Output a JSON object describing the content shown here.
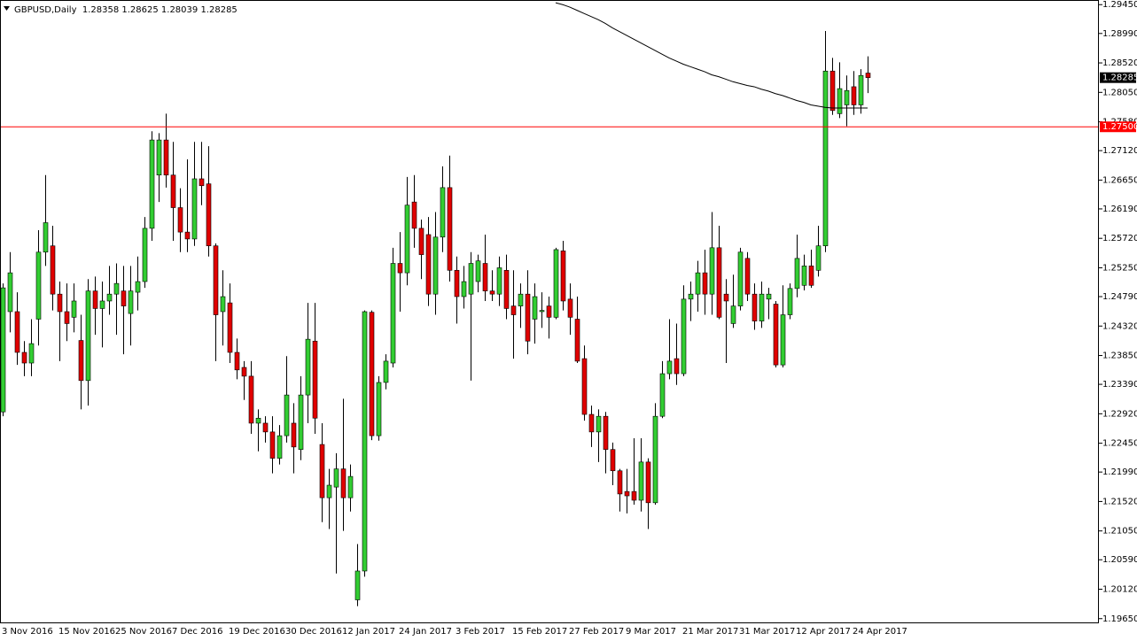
{
  "chart_data": {
    "type": "candlestick",
    "title": "GBPUSD,Daily  1.28358 1.28625 1.28039 1.28285",
    "categories": [
      "3 Nov 2016",
      null,
      null,
      null,
      null,
      null,
      null,
      null,
      "15 Nov 2016",
      null,
      null,
      null,
      null,
      null,
      null,
      null,
      "25 Nov 2016",
      null,
      null,
      null,
      null,
      null,
      null,
      null,
      "7 Dec 2016",
      null,
      null,
      null,
      null,
      null,
      null,
      null,
      "19 Dec 2016",
      null,
      null,
      null,
      null,
      null,
      null,
      null,
      "30 Dec 2016",
      null,
      null,
      null,
      null,
      null,
      null,
      null,
      "12 Jan 2017",
      null,
      null,
      null,
      null,
      null,
      null,
      null,
      "24 Jan 2017",
      null,
      null,
      null,
      null,
      null,
      null,
      null,
      "3 Feb 2017",
      null,
      null,
      null,
      null,
      null,
      null,
      null,
      "15 Feb 2017",
      null,
      null,
      null,
      null,
      null,
      null,
      null,
      "27 Feb 2017",
      null,
      null,
      null,
      null,
      null,
      null,
      null,
      "9 Mar 2017",
      null,
      null,
      null,
      null,
      null,
      null,
      null,
      "21 Mar 2017",
      null,
      null,
      null,
      null,
      null,
      null,
      null,
      "31 Mar 2017",
      null,
      null,
      null,
      null,
      null,
      null,
      null,
      "12 Apr 2017",
      null,
      null,
      null,
      null,
      null,
      null,
      null,
      "24 Apr 2017",
      null,
      null
    ],
    "open": [
      1.2295,
      1.2455,
      1.2455,
      1.239,
      1.2373,
      1.2443,
      1.255,
      1.256,
      1.2483,
      1.2455,
      1.2446,
      1.2409,
      1.2345,
      1.2488,
      1.246,
      1.2472,
      1.2483,
      1.2488,
      1.2452,
      1.2486,
      1.2503,
      1.2588,
      1.2673,
      1.2729,
      1.2673,
      1.2621,
      1.2582,
      1.2571,
      1.2667,
      1.2659,
      1.256,
      1.2455,
      1.2469,
      1.239,
      1.2366,
      1.2352,
      1.2277,
      1.2277,
      1.2263,
      1.2221,
      1.2257,
      1.2277,
      1.2235,
      1.2322,
      1.2408,
      1.2243,
      1.2158,
      1.2175,
      1.2204,
      1.2158,
      1.1995,
      1.2041,
      1.2454,
      1.2257,
      1.2342,
      1.2373,
      1.2532,
      1.2517,
      1.263,
      1.2588,
      1.2578,
      1.2483,
      1.2574,
      1.2653,
      1.2521,
      1.2479,
      1.2483,
      1.2503,
      1.2532,
      1.2488,
      1.2483,
      1.2521,
      1.2464,
      1.2464,
      1.2483,
      1.2443,
      1.2455,
      1.2464,
      1.2446,
      1.2552,
      1.2475,
      1.2443,
      1.238,
      1.2291,
      1.2263,
      1.2288,
      1.2235,
      1.2201,
      1.2168,
      1.2168,
      1.2154,
      1.2215,
      1.215,
      1.2288,
      1.2356,
      1.238,
      1.2356,
      1.2475,
      1.2483,
      1.2517,
      1.2483,
      1.2557,
      1.2483,
      1.2436,
      1.2464,
      1.254,
      1.2483,
      1.244,
      1.2475,
      1.2467,
      1.237,
      1.245,
      1.2492,
      1.2497,
      1.2528,
      1.2521,
      1.256,
      1.2839,
      1.2771,
      1.2785,
      1.2814,
      1.2785,
      1.28358
    ],
    "high": [
      1.25,
      1.255,
      1.2486,
      1.2408,
      1.2443,
      1.2585,
      1.2673,
      1.2592,
      1.2503,
      1.25,
      1.25,
      1.245,
      1.2507,
      1.2511,
      1.2503,
      1.2528,
      1.2532,
      1.2528,
      1.2528,
      1.2543,
      1.2606,
      1.2743,
      1.274,
      1.2771,
      1.2726,
      1.2652,
      1.2698,
      1.2726,
      1.2726,
      1.2719,
      1.2564,
      1.2521,
      1.25,
      1.2412,
      1.2376,
      1.2376,
      1.2299,
      1.2288,
      1.2288,
      1.2274,
      1.2384,
      1.2309,
      1.2352,
      1.2469,
      1.2469,
      1.2277,
      1.2204,
      1.2229,
      1.2316,
      1.2211,
      1.2084,
      1.2457,
      1.2457,
      1.2352,
      1.2387,
      1.2557,
      1.2582,
      1.267,
      1.2673,
      1.2602,
      1.2606,
      1.2614,
      1.2687,
      1.2704,
      1.2543,
      1.2528,
      1.255,
      1.2546,
      1.2578,
      1.2521,
      1.2543,
      1.2546,
      1.2521,
      1.25,
      1.2521,
      1.25,
      1.2486,
      1.2479,
      1.2557,
      1.2568,
      1.25,
      1.2479,
      1.2401,
      1.2305,
      1.2299,
      1.2295,
      1.2246,
      1.2204,
      1.2204,
      1.2253,
      1.2253,
      1.2221,
      1.2309,
      1.2376,
      1.2443,
      1.2436,
      1.2497,
      1.2503,
      1.2536,
      1.2554,
      1.2614,
      1.2592,
      1.2507,
      1.2514,
      1.2557,
      1.255,
      1.25,
      1.2503,
      1.2493,
      1.2472,
      1.2497,
      1.25,
      1.2578,
      1.2546,
      1.2554,
      1.2592,
      1.2903,
      1.286,
      1.2853,
      1.2832,
      1.2839,
      1.2842,
      1.28625
    ],
    "low": [
      1.2288,
      1.2422,
      1.237,
      1.2352,
      1.2352,
      1.2401,
      1.2528,
      1.2457,
      1.2376,
      1.2408,
      1.2422,
      1.2299,
      1.2305,
      1.2418,
      1.2398,
      1.245,
      1.2418,
      1.2387,
      1.2401,
      1.2457,
      1.2493,
      1.2568,
      1.263,
      1.2653,
      1.2568,
      1.255,
      1.255,
      1.256,
      1.2625,
      1.2543,
      1.2376,
      1.2401,
      1.2373,
      1.2347,
      1.2314,
      1.226,
      1.2232,
      1.2246,
      1.2197,
      1.2211,
      1.2246,
      1.2197,
      1.2218,
      1.2277,
      1.226,
      1.2119,
      1.2108,
      1.2037,
      1.2105,
      1.2136,
      1.1985,
      1.2032,
      1.225,
      1.2249,
      1.2331,
      1.2366,
      1.2455,
      1.2497,
      1.2557,
      1.2507,
      1.2464,
      1.245,
      1.255,
      1.2503,
      1.2436,
      1.246,
      1.2345,
      1.2486,
      1.2472,
      1.2472,
      1.2464,
      1.2443,
      1.238,
      1.2429,
      1.2387,
      1.2404,
      1.2429,
      1.2412,
      1.2443,
      1.2457,
      1.2418,
      1.2373,
      1.2281,
      1.2239,
      1.2215,
      1.2197,
      1.2178,
      1.2136,
      1.2133,
      1.2147,
      1.2136,
      1.2108,
      1.2147,
      1.2285,
      1.2347,
      1.2338,
      1.2352,
      1.244,
      1.2455,
      1.245,
      1.245,
      1.2443,
      1.2373,
      1.2429,
      1.2457,
      1.2472,
      1.2426,
      1.2429,
      1.2443,
      1.2366,
      1.2366,
      1.2443,
      1.2478,
      1.2489,
      1.2493,
      1.2511,
      1.255,
      1.2769,
      1.2764,
      1.2751,
      1.2769,
      1.2771,
      1.28039
    ],
    "close": [
      1.2493,
      1.2517,
      1.239,
      1.2373,
      1.2404,
      1.255,
      1.2597,
      1.2483,
      1.2455,
      1.2436,
      1.2472,
      1.2345,
      1.2488,
      1.246,
      1.2472,
      1.2483,
      1.25,
      1.2464,
      1.2488,
      1.2503,
      1.2588,
      1.2729,
      1.2729,
      1.2673,
      1.2621,
      1.2582,
      1.2571,
      1.2667,
      1.2656,
      1.256,
      1.245,
      1.2479,
      1.239,
      1.2362,
      1.2352,
      1.2277,
      1.2285,
      1.2263,
      1.2221,
      1.2257,
      1.2322,
      1.2239,
      1.2322,
      1.2411,
      1.2285,
      1.2158,
      1.2178,
      1.2204,
      1.2158,
      1.2192,
      1.2041,
      1.2455,
      1.2257,
      1.2342,
      1.2376,
      1.2532,
      1.2517,
      1.2625,
      1.2588,
      1.2546,
      1.2483,
      1.2574,
      1.2653,
      1.2521,
      1.2479,
      1.2503,
      1.2532,
      1.2536,
      1.2488,
      1.2483,
      1.2525,
      1.246,
      1.245,
      1.2483,
      1.2408,
      1.2479,
      1.2457,
      1.2446,
      1.2554,
      1.2472,
      1.2446,
      1.2376,
      1.2291,
      1.2263,
      1.2288,
      1.2235,
      1.2201,
      1.2164,
      1.2161,
      1.2154,
      1.2215,
      1.215,
      1.2288,
      1.2356,
      1.2376,
      1.2356,
      1.2475,
      1.2483,
      1.2517,
      1.2483,
      1.2557,
      1.2446,
      1.2472,
      1.2464,
      1.255,
      1.2483,
      1.244,
      1.2483,
      1.2483,
      1.237,
      1.245,
      1.2492,
      1.254,
      1.2528,
      1.2497,
      1.256,
      1.2839,
      1.2776,
      1.2811,
      1.2808,
      1.2785,
      1.2832,
      1.28285
    ],
    "up_color": "#32cd32",
    "down_color": "#e00000",
    "wick_color": "#000000",
    "ma": {
      "color": "#000000",
      "values": [
        null,
        null,
        null,
        null,
        null,
        null,
        null,
        null,
        null,
        null,
        null,
        null,
        null,
        null,
        null,
        null,
        null,
        null,
        null,
        null,
        null,
        null,
        null,
        null,
        null,
        null,
        null,
        null,
        null,
        null,
        null,
        null,
        null,
        null,
        null,
        null,
        null,
        null,
        null,
        null,
        null,
        null,
        null,
        null,
        null,
        null,
        null,
        null,
        null,
        null,
        null,
        null,
        null,
        null,
        null,
        null,
        null,
        null,
        null,
        null,
        null,
        null,
        null,
        null,
        null,
        null,
        null,
        null,
        null,
        null,
        null,
        null,
        null,
        null,
        null,
        null,
        null,
        null,
        1.2948,
        1.2945,
        1.2941,
        1.2936,
        1.2931,
        1.2926,
        1.2921,
        1.2915,
        1.2908,
        1.2902,
        1.2896,
        1.289,
        1.2884,
        1.2878,
        1.2872,
        1.2866,
        1.286,
        1.2855,
        1.285,
        1.2846,
        1.2842,
        1.2838,
        1.2833,
        1.283,
        1.2826,
        1.2822,
        1.2819,
        1.2816,
        1.2814,
        1.281,
        1.2807,
        1.2803,
        1.28,
        1.2796,
        1.2792,
        1.2789,
        1.2785,
        1.2783,
        1.2781,
        1.278,
        1.278,
        1.278,
        1.278,
        1.278,
        1.278
      ]
    },
    "hline": {
      "value": 1.275,
      "label": "1.27500",
      "color": "#ff0000"
    },
    "last_price": {
      "value": 1.28285,
      "label": "1.28285",
      "color": "#000000"
    },
    "ylim": [
      1.1959,
      1.2951
    ],
    "yticks": [
      {
        "value": 1.2945,
        "label": "1.29450"
      },
      {
        "value": 1.2899,
        "label": "1.28990"
      },
      {
        "value": 1.2852,
        "label": "1.28520"
      },
      {
        "value": 1.2805,
        "label": "1.28050"
      },
      {
        "value": 1.2758,
        "label": "1.27580"
      },
      {
        "value": 1.2712,
        "label": "1.27120"
      },
      {
        "value": 1.2665,
        "label": "1.26650"
      },
      {
        "value": 1.2619,
        "label": "1.26190"
      },
      {
        "value": 1.2572,
        "label": "1.25720"
      },
      {
        "value": 1.2525,
        "label": "1.25250"
      },
      {
        "value": 1.2479,
        "label": "1.24790"
      },
      {
        "value": 1.2432,
        "label": "1.24320"
      },
      {
        "value": 1.2385,
        "label": "1.23850"
      },
      {
        "value": 1.2339,
        "label": "1.23390"
      },
      {
        "value": 1.2292,
        "label": "1.22920"
      },
      {
        "value": 1.2245,
        "label": "1.22450"
      },
      {
        "value": 1.2199,
        "label": "1.21990"
      },
      {
        "value": 1.2152,
        "label": "1.21520"
      },
      {
        "value": 1.2105,
        "label": "1.21050"
      },
      {
        "value": 1.2059,
        "label": "1.20590"
      },
      {
        "value": 1.2012,
        "label": "1.20120"
      },
      {
        "value": 1.1965,
        "label": "1.19650"
      }
    ],
    "grid": false
  }
}
